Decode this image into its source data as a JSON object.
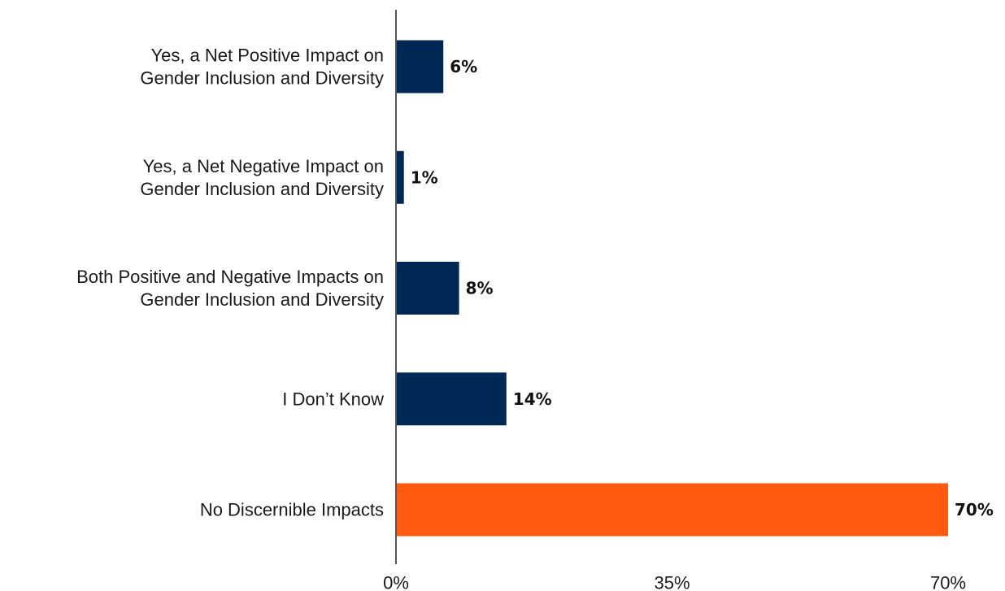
{
  "chart_data": {
    "type": "bar",
    "orientation": "horizontal",
    "categories": [
      [
        "Yes, a Net Positive Impact on",
        "Gender Inclusion and Diversity"
      ],
      [
        "Yes, a Net Negative Impact on",
        "Gender Inclusion and Diversity"
      ],
      [
        "Both Positive and Negative Impacts on",
        "Gender Inclusion and Diversity"
      ],
      [
        "I Don’t Know"
      ],
      [
        "No Discernible Impacts"
      ]
    ],
    "values": [
      6,
      1,
      8,
      14,
      70
    ],
    "value_labels": [
      "6%",
      "1%",
      "8%",
      "14%",
      "70%"
    ],
    "bar_colors": [
      "#002855",
      "#002855",
      "#002855",
      "#002855",
      "#FF5A0F"
    ],
    "xlim": [
      0,
      70
    ],
    "xticks": [
      0,
      35,
      70
    ],
    "xtick_labels": [
      "0%",
      "35%",
      "70%"
    ],
    "title": "",
    "xlabel": "",
    "ylabel": "",
    "grid": false,
    "legend": "none"
  }
}
